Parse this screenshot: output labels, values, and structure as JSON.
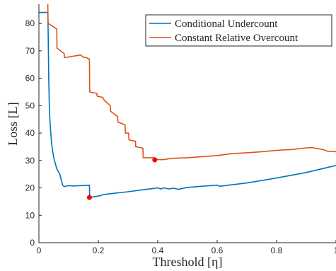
{
  "chart_data": {
    "type": "line",
    "xlabel": "Threshold [η]",
    "ylabel": "Loss [L]",
    "xlim": [
      0,
      1
    ],
    "ylim": [
      0,
      87
    ],
    "xticks": [
      "0",
      "0.2",
      "0.4",
      "0.6",
      "0.8",
      "1"
    ],
    "xtick_values": [
      0,
      0.2,
      0.4,
      0.6,
      0.8,
      1
    ],
    "yticks": [
      "0",
      "10",
      "20",
      "30",
      "40",
      "50",
      "60",
      "70",
      "80"
    ],
    "ytick_values": [
      0,
      10,
      20,
      30,
      40,
      50,
      60,
      70,
      80
    ],
    "grid": false,
    "legend_position": "top-right",
    "series": [
      {
        "name": "Conditional Undercount",
        "color": "#0072BD",
        "x": [
          0,
          0.0001,
          0.03,
          0.031,
          0.032,
          0.033,
          0.035,
          0.037,
          0.04,
          0.043,
          0.047,
          0.05,
          0.055,
          0.06,
          0.065,
          0.07,
          0.075,
          0.08,
          0.085,
          0.1,
          0.12,
          0.13,
          0.14,
          0.17,
          0.171,
          0.2,
          0.22,
          0.25,
          0.3,
          0.35,
          0.38,
          0.4,
          0.41,
          0.42,
          0.44,
          0.45,
          0.47,
          0.5,
          0.55,
          0.6,
          0.61,
          0.7,
          0.8,
          0.9,
          1.0
        ],
        "y": [
          84,
          84,
          84,
          78,
          70,
          60,
          50,
          45,
          40,
          36,
          33,
          31,
          29,
          27,
          26,
          25.2,
          23,
          21,
          20.5,
          20.8,
          20.7,
          20.8,
          20.8,
          21,
          16.5,
          17,
          17.6,
          18,
          18.6,
          19.3,
          19.7,
          20,
          19.6,
          20,
          19.6,
          19.9,
          19.5,
          20.2,
          20.6,
          21,
          20.6,
          21.8,
          23.6,
          25.6,
          28.2
        ],
        "marker": {
          "x": 0.17,
          "y": 16.5
        }
      },
      {
        "name": "Constant Relative Overcount",
        "color": "#D95319",
        "x": [
          0.03,
          0.031,
          0.06,
          0.061,
          0.085,
          0.086,
          0.14,
          0.15,
          0.16,
          0.17,
          0.171,
          0.195,
          0.196,
          0.215,
          0.22,
          0.24,
          0.241,
          0.265,
          0.266,
          0.29,
          0.291,
          0.302,
          0.303,
          0.325,
          0.326,
          0.35,
          0.351,
          0.39,
          0.4,
          0.42,
          0.45,
          0.5,
          0.6,
          0.65,
          0.7,
          0.75,
          0.8,
          0.85,
          0.9,
          0.92,
          0.96,
          0.97,
          1.0
        ],
        "y": [
          87,
          80,
          78,
          71,
          69,
          67.5,
          68.5,
          67.7,
          67.5,
          67,
          55,
          54.5,
          53.5,
          53,
          52,
          50,
          48,
          46,
          44,
          43,
          40,
          40,
          37.5,
          37,
          35,
          34.5,
          31,
          31,
          30.3,
          30.3,
          30.8,
          31,
          31.8,
          32.5,
          32.8,
          33.2,
          33.7,
          34,
          34.6,
          34.7,
          33.9,
          33.4,
          33.2
        ],
        "marker": {
          "x": 0.39,
          "y": 30.2
        }
      }
    ]
  }
}
